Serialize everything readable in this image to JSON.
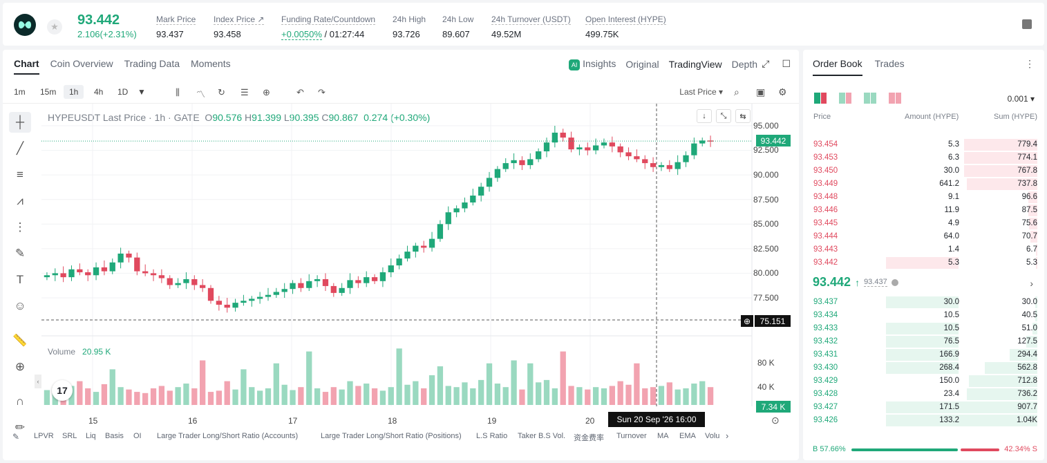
{
  "header": {
    "price": "93.442",
    "change": "2.106(+2.31%)",
    "stats": [
      {
        "label": "Mark Price",
        "value": "93.437"
      },
      {
        "label": "Index Price ↗",
        "value": "93.458"
      },
      {
        "label": "Funding Rate/Countdown",
        "value": "+0.0050%",
        "value2": " / 01:27:44"
      },
      {
        "label": "24h High",
        "value": "93.726"
      },
      {
        "label": "24h Low",
        "value": "89.607"
      },
      {
        "label": "24h Turnover (USDT)",
        "value": "49.52M"
      },
      {
        "label": "Open Interest (HYPE)",
        "value": "499.75K"
      }
    ]
  },
  "chart_tabs": [
    "Chart",
    "Coin Overview",
    "Trading Data",
    "Moments"
  ],
  "view_tabs": {
    "insights": "Insights",
    "original": "Original",
    "tradingview": "TradingView",
    "depth": "Depth"
  },
  "timeframes": [
    "1m",
    "15m",
    "1h",
    "4h",
    "1D"
  ],
  "last_price_select": "Last Price",
  "legend": {
    "symbol": "HYPEUSDT Last Price · 1h · GATE",
    "o": "90.576",
    "h": "91.399",
    "l": "90.395",
    "c": "90.867",
    "chg": "0.274 (+0.30%)"
  },
  "volume_label": "Volume",
  "volume_value": "20.95 K",
  "crosshair_price": "75.151",
  "crosshair_time": "Sun 20 Sep '26   16:00",
  "current_price_tag": "93.442",
  "volume_tag": "7.34 K",
  "colors": {
    "up": "#1fa879",
    "down": "#e0495e",
    "up_light": "#9ad9c0",
    "down_light": "#f2a3b0"
  },
  "chart_data": {
    "type": "candlestick",
    "y_ticks": [
      "95.000",
      "92.500",
      "90.000",
      "87.500",
      "85.000",
      "82.500",
      "80.000",
      "77.500"
    ],
    "x_ticks": [
      "15",
      "16",
      "17",
      "18",
      "19",
      "20"
    ],
    "vol_ticks": [
      "80 K",
      "40 K"
    ],
    "series": [
      {
        "name": "price",
        "path": [
          79.8,
          80,
          79.6,
          80.4,
          80.1,
          79.8,
          80.6,
          80.2,
          81.1,
          82.0,
          81.6,
          80.2,
          80.0,
          79.8,
          79.5,
          78.8,
          79.0,
          79.4,
          78.8,
          78.5,
          77.2,
          76.8,
          76.5,
          77.0,
          77.2,
          77.4,
          77.6,
          77.8,
          78.1,
          78.4,
          79.0,
          78.5,
          79.2,
          79.4,
          78.7,
          78.0,
          78.5,
          79.3,
          79.0,
          79.6,
          79.2,
          80.1,
          80.8,
          81.5,
          82.2,
          82.8,
          82.6,
          83.5,
          85.0,
          86.2,
          86.6,
          87.2,
          87.9,
          88.8,
          89.7,
          90.6,
          91.2,
          91.5,
          91.0,
          91.6,
          92.4,
          93.3,
          94.3,
          93.8,
          92.6,
          92.8,
          92.5,
          93.0,
          93.3,
          92.9,
          92.3,
          91.9,
          91.6,
          91.2,
          90.8,
          91.0,
          90.6,
          91.3,
          92.0,
          93.2,
          93.5,
          93.442
        ]
      },
      {
        "name": "volume",
        "values": [
          25,
          30,
          20,
          32,
          40,
          28,
          22,
          35,
          60,
          30,
          26,
          22,
          20,
          28,
          32,
          24,
          30,
          36,
          28,
          75,
          22,
          24,
          40,
          26,
          60,
          30,
          24,
          28,
          70,
          34,
          25,
          30,
          90,
          28,
          22,
          30,
          26,
          40,
          32,
          36,
          28,
          24,
          30,
          95,
          34,
          40,
          28,
          50,
          65,
          32,
          30,
          38,
          28,
          42,
          70,
          36,
          30,
          75,
          26,
          70,
          38,
          42,
          28,
          90,
          32,
          30,
          26,
          30,
          28,
          32,
          40,
          34,
          70,
          28,
          30,
          32,
          38,
          26,
          28,
          36,
          40,
          30
        ]
      }
    ]
  },
  "tools_indicators": [
    "LPVR",
    "SRL",
    "Liq",
    "Basis",
    "OI",
    "Large Trader Long/Short Ratio (Accounts)",
    "Large Trader Long/Short Ratio (Positions)",
    "L.S Ratio",
    "Taker B.S Vol.",
    "资金费率",
    "Turnover",
    "MA",
    "EMA",
    "Volu"
  ],
  "orderbook": {
    "tabs": [
      "Order Book",
      "Trades"
    ],
    "precision": "0.001",
    "headers": {
      "price": "Price",
      "amount": "Amount (HYPE)",
      "sum": "Sum (HYPE)"
    },
    "asks": [
      {
        "price": "93.454",
        "amount": "5.3",
        "sum": "779.4",
        "depth": 0.32,
        "amt": 0
      },
      {
        "price": "93.453",
        "amount": "6.3",
        "sum": "774.1",
        "depth": 0.32,
        "amt": 0
      },
      {
        "price": "93.450",
        "amount": "30.0",
        "sum": "767.8",
        "depth": 0.32,
        "amt": 0
      },
      {
        "price": "93.449",
        "amount": "641.2",
        "sum": "737.8",
        "depth": 0.31,
        "amt": 0
      },
      {
        "price": "93.448",
        "amount": "9.1",
        "sum": "96.6",
        "depth": 0.04,
        "amt": 0
      },
      {
        "price": "93.446",
        "amount": "11.9",
        "sum": "87.5",
        "depth": 0.04,
        "amt": 0
      },
      {
        "price": "93.445",
        "amount": "4.9",
        "sum": "75.6",
        "depth": 0.035,
        "amt": 0
      },
      {
        "price": "93.444",
        "amount": "64.0",
        "sum": "70.7",
        "depth": 0.03,
        "amt": 0
      },
      {
        "price": "93.443",
        "amount": "1.4",
        "sum": "6.7",
        "depth": 0.005,
        "amt": 0
      },
      {
        "price": "93.442",
        "amount": "5.3",
        "sum": "5.3",
        "depth": 0.005,
        "amt": 0.32
      }
    ],
    "mid_price": "93.442",
    "mid_mark": "93.437",
    "bids": [
      {
        "price": "93.437",
        "amount": "30.0",
        "sum": "30.0",
        "depth": 0.01,
        "amt": 0.32
      },
      {
        "price": "93.434",
        "amount": "10.5",
        "sum": "40.5",
        "depth": 0.01,
        "amt": 0
      },
      {
        "price": "93.433",
        "amount": "10.5",
        "sum": "51.0",
        "depth": 0.02,
        "amt": 0.32
      },
      {
        "price": "93.432",
        "amount": "76.5",
        "sum": "127.5",
        "depth": 0.05,
        "amt": 0.32
      },
      {
        "price": "93.431",
        "amount": "166.9",
        "sum": "294.4",
        "depth": 0.12,
        "amt": 0.32
      },
      {
        "price": "93.430",
        "amount": "268.4",
        "sum": "562.8",
        "depth": 0.23,
        "amt": 0.32
      },
      {
        "price": "93.429",
        "amount": "150.0",
        "sum": "712.8",
        "depth": 0.3,
        "amt": 0
      },
      {
        "price": "93.428",
        "amount": "23.4",
        "sum": "736.2",
        "depth": 0.31,
        "amt": 0
      },
      {
        "price": "93.427",
        "amount": "171.5",
        "sum": "907.7",
        "depth": 0.38,
        "amt": 0.32
      },
      {
        "price": "93.426",
        "amount": "133.2",
        "sum": "1.04K",
        "depth": 0.44,
        "amt": 0.32
      }
    ],
    "buy_ratio": "B 57.66%",
    "sell_ratio": "42.34% S"
  }
}
